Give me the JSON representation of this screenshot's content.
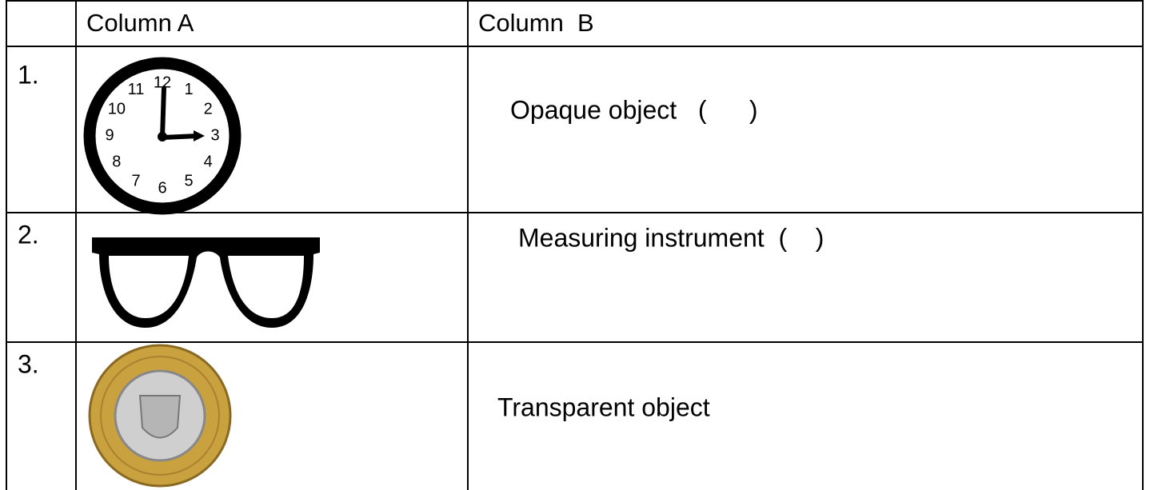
{
  "header": {
    "column_a": "Column A",
    "column_b": "Column  B"
  },
  "rows": [
    {
      "number": "1.",
      "item": "Opaque object   (      )"
    },
    {
      "number": "2.",
      "item": "Measuring instrument  (    )"
    },
    {
      "number": "3.",
      "item": "Transparent object"
    }
  ],
  "clock": {
    "numbers": [
      "1",
      "2",
      "3",
      "4",
      "5",
      "6",
      "7",
      "8",
      "9",
      "10",
      "11",
      "12"
    ]
  }
}
